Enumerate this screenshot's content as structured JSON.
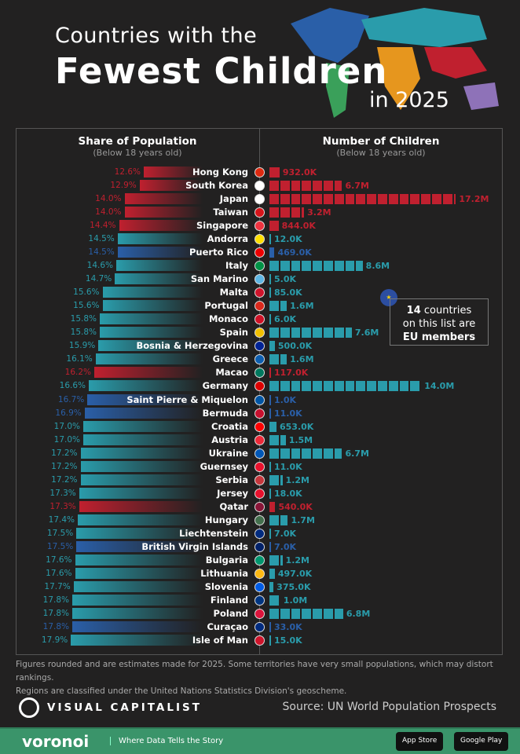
{
  "title": {
    "line1": "Countries with the",
    "line2": "Fewest Children",
    "line3": "in 2025"
  },
  "chart_data": {
    "type": "bar",
    "left": {
      "title": "Share of Population",
      "subtitle": "(Below 18 years old)",
      "unit": "%"
    },
    "right": {
      "title": "Number of Children",
      "subtitle": "(Below 18 years old)",
      "unit": "millions"
    },
    "colors": {
      "red": "#c0202f",
      "teal": "#2a9cab",
      "blue": "#2a5fa8"
    },
    "rows": [
      {
        "country": "Hong Kong",
        "share": 12.6,
        "share_label": "12.6%",
        "children": 0.932,
        "children_label": "932.0K",
        "color": "red",
        "flag": "#de2910"
      },
      {
        "country": "South Korea",
        "share": 12.9,
        "share_label": "12.9%",
        "children": 6.7,
        "children_label": "6.7M",
        "color": "red",
        "flag": "#ffffff"
      },
      {
        "country": "Japan",
        "share": 14.0,
        "share_label": "14.0%",
        "children": 17.2,
        "children_label": "17.2M",
        "color": "red",
        "flag": "#ffffff"
      },
      {
        "country": "Taiwan",
        "share": 14.0,
        "share_label": "14.0%",
        "children": 3.2,
        "children_label": "3.2M",
        "color": "red",
        "flag": "#d7141a"
      },
      {
        "country": "Singapore",
        "share": 14.4,
        "share_label": "14.4%",
        "children": 0.844,
        "children_label": "844.0K",
        "color": "red",
        "flag": "#ef3340"
      },
      {
        "country": "Andorra",
        "share": 14.5,
        "share_label": "14.5%",
        "children": 0.012,
        "children_label": "12.0K",
        "color": "teal",
        "flag": "#fedf00"
      },
      {
        "country": "Puerto Rico",
        "share": 14.5,
        "share_label": "14.5%",
        "children": 0.469,
        "children_label": "469.0K",
        "color": "blue",
        "flag": "#ed0000"
      },
      {
        "country": "Italy",
        "share": 14.6,
        "share_label": "14.6%",
        "children": 8.6,
        "children_label": "8.6M",
        "color": "teal",
        "flag": "#009246"
      },
      {
        "country": "San Marino",
        "share": 14.7,
        "share_label": "14.7%",
        "children": 0.005,
        "children_label": "5.0K",
        "color": "teal",
        "flag": "#5eb6e4"
      },
      {
        "country": "Malta",
        "share": 15.6,
        "share_label": "15.6%",
        "children": 0.085,
        "children_label": "85.0K",
        "color": "teal",
        "flag": "#cf142b"
      },
      {
        "country": "Portugal",
        "share": 15.6,
        "share_label": "15.6%",
        "children": 1.6,
        "children_label": "1.6M",
        "color": "teal",
        "flag": "#da291c"
      },
      {
        "country": "Monaco",
        "share": 15.8,
        "share_label": "15.8%",
        "children": 0.006,
        "children_label": "6.0K",
        "color": "teal",
        "flag": "#ce1126"
      },
      {
        "country": "Spain",
        "share": 15.8,
        "share_label": "15.8%",
        "children": 7.6,
        "children_label": "7.6M",
        "color": "teal",
        "flag": "#f1bf00"
      },
      {
        "country": "Bosnia & Herzegovina",
        "share": 15.9,
        "share_label": "15.9%",
        "children": 0.5,
        "children_label": "500.0K",
        "color": "teal",
        "flag": "#002395"
      },
      {
        "country": "Greece",
        "share": 16.1,
        "share_label": "16.1%",
        "children": 1.6,
        "children_label": "1.6M",
        "color": "teal",
        "flag": "#0d5eaf"
      },
      {
        "country": "Macao",
        "share": 16.2,
        "share_label": "16.2%",
        "children": 0.117,
        "children_label": "117.0K",
        "color": "red",
        "flag": "#00785e"
      },
      {
        "country": "Germany",
        "share": 16.6,
        "share_label": "16.6%",
        "children": 14.0,
        "children_label": "14.0M",
        "color": "teal",
        "flag": "#dd0000"
      },
      {
        "country": "Saint Pierre & Miquelon",
        "share": 16.7,
        "share_label": "16.7%",
        "children": 0.001,
        "children_label": "1.0K",
        "color": "blue",
        "flag": "#0055a4"
      },
      {
        "country": "Bermuda",
        "share": 16.9,
        "share_label": "16.9%",
        "children": 0.011,
        "children_label": "11.0K",
        "color": "blue",
        "flag": "#c8102e"
      },
      {
        "country": "Croatia",
        "share": 17.0,
        "share_label": "17.0%",
        "children": 0.653,
        "children_label": "653.0K",
        "color": "teal",
        "flag": "#ff0000"
      },
      {
        "country": "Austria",
        "share": 17.0,
        "share_label": "17.0%",
        "children": 1.5,
        "children_label": "1.5M",
        "color": "teal",
        "flag": "#ed2939"
      },
      {
        "country": "Ukraine",
        "share": 17.2,
        "share_label": "17.2%",
        "children": 6.7,
        "children_label": "6.7M",
        "color": "teal",
        "flag": "#0057b7"
      },
      {
        "country": "Guernsey",
        "share": 17.2,
        "share_label": "17.2%",
        "children": 0.011,
        "children_label": "11.0K",
        "color": "teal",
        "flag": "#e8112d"
      },
      {
        "country": "Serbia",
        "share": 17.2,
        "share_label": "17.2%",
        "children": 1.2,
        "children_label": "1.2M",
        "color": "teal",
        "flag": "#c6363c"
      },
      {
        "country": "Jersey",
        "share": 17.3,
        "share_label": "17.3%",
        "children": 0.018,
        "children_label": "18.0K",
        "color": "teal",
        "flag": "#e8112d"
      },
      {
        "country": "Qatar",
        "share": 17.3,
        "share_label": "17.3%",
        "children": 0.54,
        "children_label": "540.0K",
        "color": "red",
        "flag": "#8a1538"
      },
      {
        "country": "Hungary",
        "share": 17.4,
        "share_label": "17.4%",
        "children": 1.7,
        "children_label": "1.7M",
        "color": "teal",
        "flag": "#436f4d"
      },
      {
        "country": "Liechtenstein",
        "share": 17.5,
        "share_label": "17.5%",
        "children": 0.007,
        "children_label": "7.0K",
        "color": "teal",
        "flag": "#002b7f"
      },
      {
        "country": "British Virgin Islands",
        "share": 17.5,
        "share_label": "17.5%",
        "children": 0.007,
        "children_label": "7.0K",
        "color": "blue",
        "flag": "#012169"
      },
      {
        "country": "Bulgaria",
        "share": 17.6,
        "share_label": "17.6%",
        "children": 1.2,
        "children_label": "1.2M",
        "color": "teal",
        "flag": "#00966e"
      },
      {
        "country": "Lithuania",
        "share": 17.6,
        "share_label": "17.6%",
        "children": 0.497,
        "children_label": "497.0K",
        "color": "teal",
        "flag": "#fdb913"
      },
      {
        "country": "Slovenia",
        "share": 17.7,
        "share_label": "17.7%",
        "children": 0.375,
        "children_label": "375.0K",
        "color": "teal",
        "flag": "#005ce5"
      },
      {
        "country": "Finland",
        "share": 17.8,
        "share_label": "17.8%",
        "children": 1.0,
        "children_label": "1.0M",
        "color": "teal",
        "flag": "#003580"
      },
      {
        "country": "Poland",
        "share": 17.8,
        "share_label": "17.8%",
        "children": 6.8,
        "children_label": "6.8M",
        "color": "teal",
        "flag": "#dc143c"
      },
      {
        "country": "Curaçao",
        "share": 17.8,
        "share_label": "17.8%",
        "children": 0.033,
        "children_label": "33.0K",
        "color": "blue",
        "flag": "#002b7f"
      },
      {
        "country": "Isle of Man",
        "share": 17.9,
        "share_label": "17.9%",
        "children": 0.015,
        "children_label": "15.0K",
        "color": "teal",
        "flag": "#cf142b"
      }
    ]
  },
  "callout": {
    "count": "14",
    "line1": " countries",
    "line2": "on this list are",
    "line3": "EU members",
    "icon": "eu-flag-icon"
  },
  "note": {
    "line1": "Figures rounded and are estimates made for 2025. Some territories have very small populations, which may distort rankings.",
    "line2": "Regions are classified under the United Nations Statistics Division's geoscheme."
  },
  "brand": {
    "name": "VISUAL CAPITALIST",
    "source": "Source:  UN World Population Prospects"
  },
  "footer": {
    "logo": "voronoi",
    "tagline": "Where Data Tells the Story",
    "app_store": "App Store",
    "google_play": "Google Play"
  }
}
